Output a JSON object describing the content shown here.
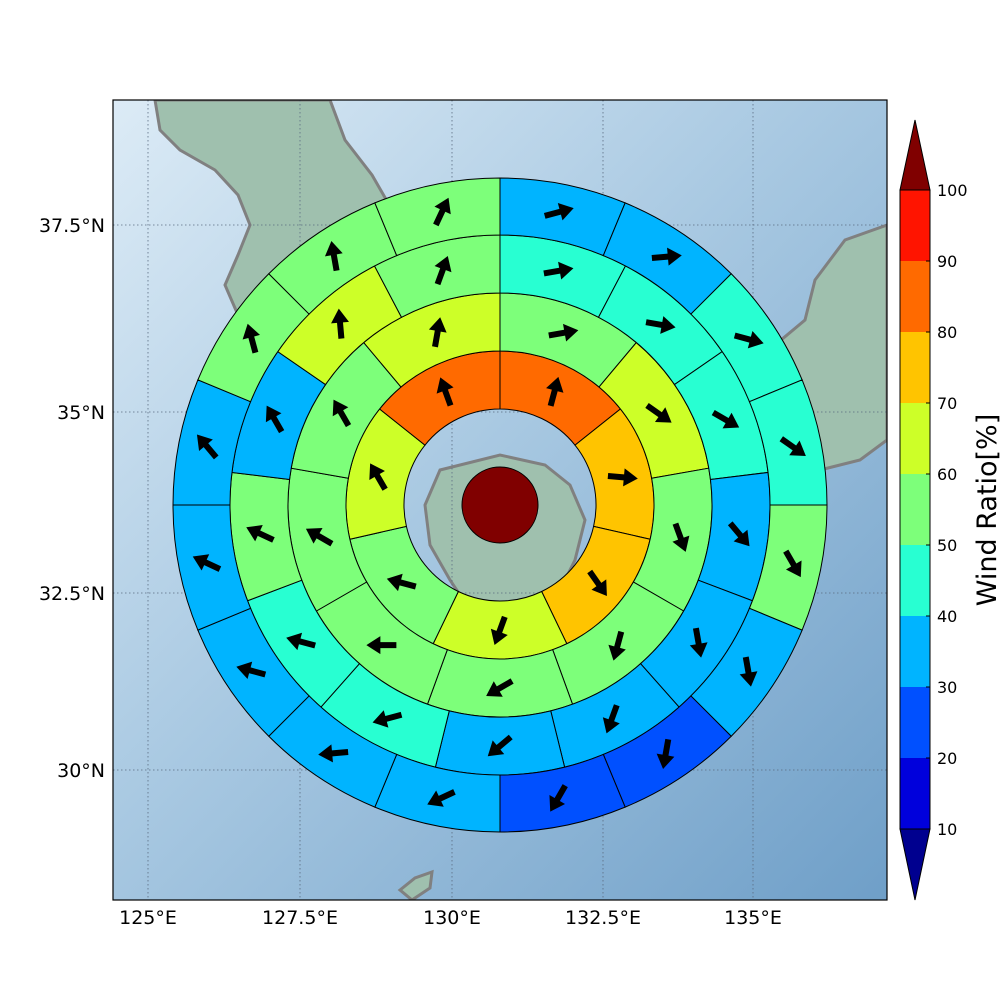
{
  "map": {
    "lon_ticks": [
      "125°E",
      "127.5°E",
      "130°E",
      "132.5°E",
      "135°E"
    ],
    "lat_ticks": [
      "37.5°N",
      "35°N",
      "32.5°N",
      "30°N"
    ],
    "center_value": 100,
    "rings": [
      {
        "values": [
          88,
          72,
          72,
          68,
          58,
          66,
          84
        ],
        "dirs": [
          15,
          95,
          145,
          200,
          285,
          330,
          340
        ]
      },
      {
        "values": [
          58,
          62,
          58,
          56,
          56,
          53,
          58,
          52,
          66
        ],
        "dirs": [
          80,
          125,
          160,
          195,
          240,
          270,
          300,
          330,
          10
        ]
      },
      {
        "values": [
          45,
          45,
          45,
          38,
          32,
          33,
          35,
          45,
          48,
          55,
          36,
          62,
          55
        ],
        "dirs": [
          80,
          100,
          120,
          140,
          170,
          200,
          230,
          255,
          285,
          295,
          330,
          355,
          20
        ]
      },
      {
        "values": [
          34,
          38,
          45,
          45,
          54,
          32,
          28,
          25,
          38,
          36,
          34,
          32,
          36,
          55,
          55,
          54
        ],
        "dirs": [
          75,
          85,
          105,
          125,
          150,
          170,
          190,
          210,
          245,
          265,
          285,
          295,
          320,
          345,
          350,
          25
        ]
      },
      {
        "values": [
          32,
          22,
          22,
          36,
          38,
          28,
          28,
          26,
          12,
          16,
          28,
          24,
          24,
          22,
          22,
          21,
          33,
          45,
          52,
          48
        ],
        "dirs": [
          75,
          80,
          100,
          120,
          145,
          165,
          175,
          200,
          210,
          215,
          240,
          250,
          260,
          280,
          290,
          310,
          345,
          350,
          20,
          30
        ]
      }
    ]
  },
  "colorbar": {
    "title": "Wind Ratio[%]",
    "tick_labels": [
      "10",
      "20",
      "30",
      "40",
      "50",
      "60",
      "70",
      "80",
      "90",
      "100"
    ],
    "colors": [
      "#0000dc",
      "#0050ff",
      "#00b4ff",
      "#28ffd2",
      "#7dff7a",
      "#cdff28",
      "#ffc400",
      "#ff6a00",
      "#ff1400"
    ],
    "under_color": "#00008f",
    "over_color": "#800000"
  }
}
